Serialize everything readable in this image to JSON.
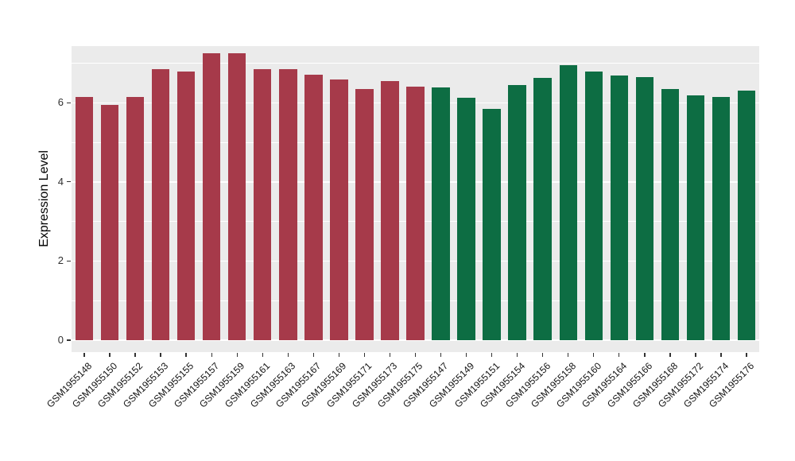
{
  "y_axis": {
    "title": "Expression Level",
    "tick_values": [
      0,
      2,
      4,
      6
    ]
  },
  "chart_data": {
    "type": "bar",
    "title": "",
    "xlabel": "",
    "ylabel": "Expression Level",
    "ylim": [
      0,
      7.4
    ],
    "grid": "major+minor white on gray panel",
    "legend": "none",
    "panel_bg": "#EBEBEB",
    "group_colors": {
      "maroon": "#A63A4A",
      "green": "#0D6D43"
    },
    "bars": [
      {
        "label": "GSM1955148",
        "value": 6.15,
        "group": "maroon"
      },
      {
        "label": "GSM1955150",
        "value": 5.95,
        "group": "maroon"
      },
      {
        "label": "GSM1955152",
        "value": 6.15,
        "group": "maroon"
      },
      {
        "label": "GSM1955153",
        "value": 6.85,
        "group": "maroon"
      },
      {
        "label": "GSM1955155",
        "value": 6.78,
        "group": "maroon"
      },
      {
        "label": "GSM1955157",
        "value": 7.25,
        "group": "maroon"
      },
      {
        "label": "GSM1955159",
        "value": 7.25,
        "group": "maroon"
      },
      {
        "label": "GSM1955161",
        "value": 6.85,
        "group": "maroon"
      },
      {
        "label": "GSM1955163",
        "value": 6.85,
        "group": "maroon"
      },
      {
        "label": "GSM1955167",
        "value": 6.7,
        "group": "maroon"
      },
      {
        "label": "GSM1955169",
        "value": 6.58,
        "group": "maroon"
      },
      {
        "label": "GSM1955171",
        "value": 6.35,
        "group": "maroon"
      },
      {
        "label": "GSM1955173",
        "value": 6.55,
        "group": "maroon"
      },
      {
        "label": "GSM1955175",
        "value": 6.4,
        "group": "maroon"
      },
      {
        "label": "GSM1955147",
        "value": 6.38,
        "group": "green"
      },
      {
        "label": "GSM1955149",
        "value": 6.12,
        "group": "green"
      },
      {
        "label": "GSM1955151",
        "value": 5.85,
        "group": "green"
      },
      {
        "label": "GSM1955154",
        "value": 6.45,
        "group": "green"
      },
      {
        "label": "GSM1955156",
        "value": 6.62,
        "group": "green"
      },
      {
        "label": "GSM1955158",
        "value": 6.95,
        "group": "green"
      },
      {
        "label": "GSM1955160",
        "value": 6.78,
        "group": "green"
      },
      {
        "label": "GSM1955164",
        "value": 6.68,
        "group": "green"
      },
      {
        "label": "GSM1955166",
        "value": 6.65,
        "group": "green"
      },
      {
        "label": "GSM1955168",
        "value": 6.35,
        "group": "green"
      },
      {
        "label": "GSM1955172",
        "value": 6.18,
        "group": "green"
      },
      {
        "label": "GSM1955174",
        "value": 6.15,
        "group": "green"
      },
      {
        "label": "GSM1955176",
        "value": 6.3,
        "group": "green"
      }
    ],
    "y_major_gridlines": [
      0,
      2,
      4,
      6
    ],
    "y_minor_gridlines": [
      1,
      3,
      5,
      7
    ]
  }
}
